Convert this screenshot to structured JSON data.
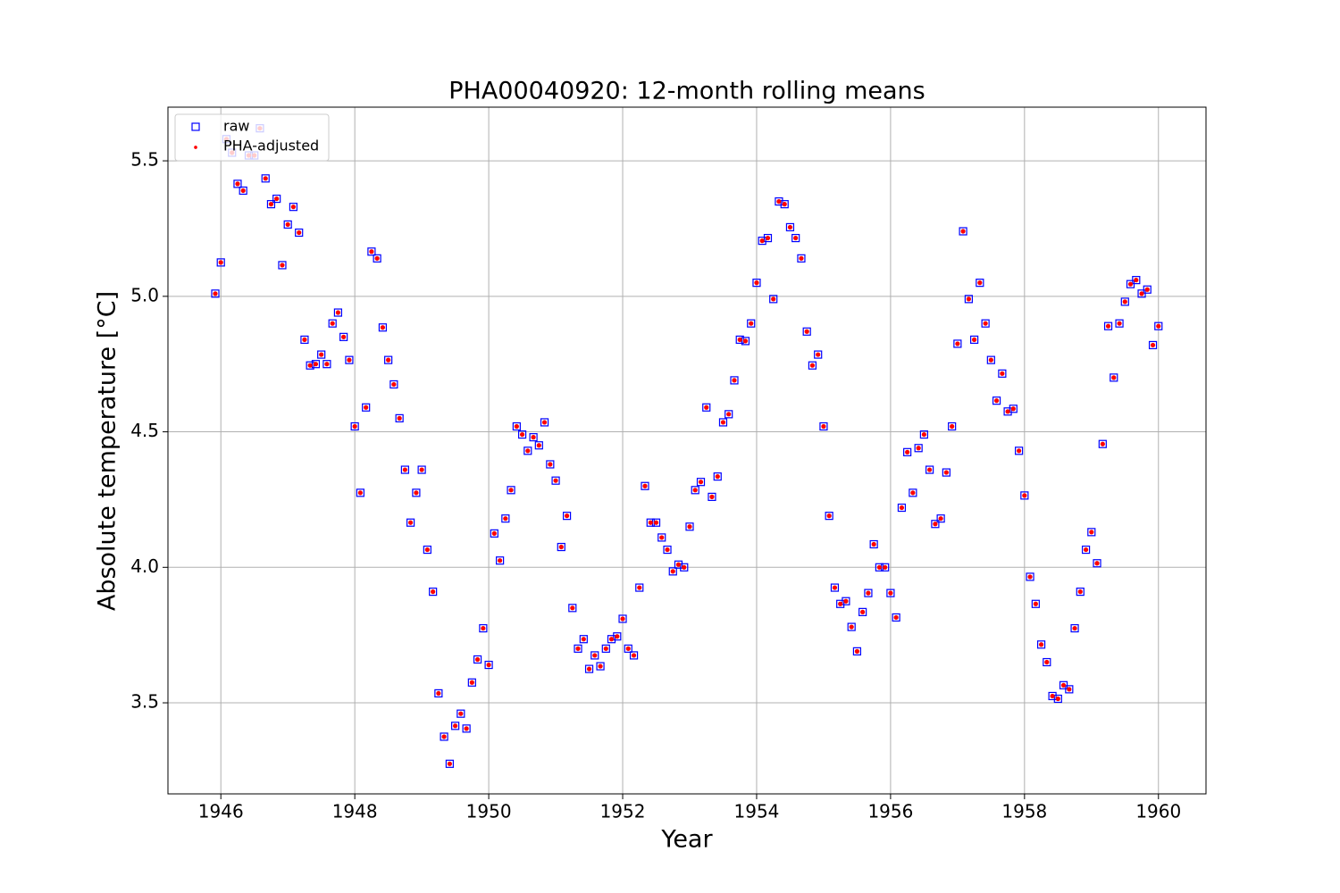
{
  "chart_data": {
    "type": "scatter",
    "title": "PHA00040920: 12-month rolling means",
    "x_label": "Year",
    "y_label": "Absolute temperature [°C]",
    "xlim": [
      1945.21,
      1960.71
    ],
    "ylim": [
      3.164,
      5.698
    ],
    "xticks": [
      1946,
      1948,
      1950,
      1952,
      1954,
      1956,
      1958,
      1960
    ],
    "yticks": [
      3.5,
      {
        "value": 4.0,
        "label": "4.0"
      },
      4.5,
      {
        "value": 5.0,
        "label": "5.0"
      },
      5.5
    ],
    "grid": true,
    "legend": "upper left",
    "x": [
      1945.917,
      1946.0,
      1946.083,
      1946.167,
      1946.25,
      1946.333,
      1946.417,
      1946.5,
      1946.583,
      1946.667,
      1946.75,
      1946.833,
      1946.917,
      1947.0,
      1947.083,
      1947.167,
      1947.25,
      1947.333,
      1947.417,
      1947.5,
      1947.583,
      1947.667,
      1947.75,
      1947.833,
      1947.917,
      1948.0,
      1948.083,
      1948.167,
      1948.25,
      1948.333,
      1948.417,
      1948.5,
      1948.583,
      1948.667,
      1948.75,
      1948.833,
      1948.917,
      1949.0,
      1949.083,
      1949.167,
      1949.25,
      1949.333,
      1949.417,
      1949.5,
      1949.583,
      1949.667,
      1949.75,
      1949.833,
      1949.917,
      1950.0,
      1950.083,
      1950.167,
      1950.25,
      1950.333,
      1950.417,
      1950.5,
      1950.583,
      1950.667,
      1950.75,
      1950.833,
      1950.917,
      1951.0,
      1951.083,
      1951.167,
      1951.25,
      1951.333,
      1951.417,
      1951.5,
      1951.583,
      1951.667,
      1951.75,
      1951.833,
      1951.917,
      1952.0,
      1952.083,
      1952.167,
      1952.25,
      1952.333,
      1952.417,
      1952.5,
      1952.583,
      1952.667,
      1952.75,
      1952.833,
      1952.917,
      1953.0,
      1953.083,
      1953.167,
      1953.25,
      1953.333,
      1953.417,
      1953.5,
      1953.583,
      1953.667,
      1953.75,
      1953.833,
      1953.917,
      1954.0,
      1954.083,
      1954.167,
      1954.25,
      1954.333,
      1954.417,
      1954.5,
      1954.583,
      1954.667,
      1954.75,
      1954.833,
      1954.917,
      1955.0,
      1955.083,
      1955.167,
      1955.25,
      1955.333,
      1955.417,
      1955.5,
      1955.583,
      1955.667,
      1955.75,
      1955.833,
      1955.917,
      1956.0,
      1956.083,
      1956.167,
      1956.25,
      1956.333,
      1956.417,
      1956.5,
      1956.583,
      1956.667,
      1956.75,
      1956.833,
      1956.917,
      1957.0,
      1957.083,
      1957.167,
      1957.25,
      1957.333,
      1957.417,
      1957.5,
      1957.583,
      1957.667,
      1957.75,
      1957.833,
      1957.917,
      1958.0,
      1958.083,
      1958.167,
      1958.25,
      1958.333,
      1958.417,
      1958.5,
      1958.583,
      1958.667,
      1958.75,
      1958.833,
      1958.917,
      1959.0,
      1959.083,
      1959.167,
      1959.25,
      1959.333,
      1959.417,
      1959.5,
      1959.583,
      1959.667,
      1959.75,
      1959.833,
      1959.917,
      1960.0
    ],
    "series": [
      {
        "name": "raw",
        "color": "#0000ff",
        "marker": "square-open",
        "values": [
          5.01,
          5.125,
          5.58,
          5.53,
          5.415,
          5.39,
          5.52,
          5.52,
          5.62,
          5.435,
          5.34,
          5.36,
          5.115,
          5.265,
          5.33,
          5.235,
          4.84,
          4.745,
          4.75,
          4.785,
          4.75,
          4.9,
          4.94,
          4.85,
          4.765,
          4.52,
          4.275,
          4.59,
          5.165,
          5.14,
          4.885,
          4.765,
          4.675,
          4.55,
          4.36,
          4.165,
          4.275,
          4.36,
          4.065,
          3.91,
          3.535,
          3.375,
          3.275,
          3.415,
          3.46,
          3.405,
          3.575,
          3.66,
          3.775,
          3.64,
          4.125,
          4.025,
          4.18,
          4.285,
          4.52,
          4.49,
          4.43,
          4.48,
          4.45,
          4.535,
          4.38,
          4.32,
          4.075,
          4.19,
          3.85,
          3.7,
          3.735,
          3.625,
          3.675,
          3.635,
          3.7,
          3.735,
          3.745,
          3.81,
          3.7,
          3.675,
          3.925,
          4.3,
          4.165,
          4.165,
          4.11,
          4.065,
          3.985,
          4.01,
          4.0,
          4.15,
          4.285,
          4.315,
          4.59,
          4.26,
          4.335,
          4.535,
          4.565,
          4.69,
          4.84,
          4.835,
          4.9,
          5.05,
          5.205,
          5.215,
          4.99,
          5.35,
          5.34,
          5.255,
          5.215,
          5.14,
          4.87,
          4.745,
          4.785,
          4.52,
          4.19,
          3.925,
          3.865,
          3.875,
          3.78,
          3.69,
          3.835,
          3.905,
          4.085,
          4.0,
          4.0,
          3.905,
          3.815,
          4.22,
          4.425,
          4.275,
          4.44,
          4.49,
          4.36,
          4.16,
          4.18,
          4.35,
          4.52,
          4.825,
          5.24,
          4.99,
          4.84,
          5.05,
          4.9,
          4.765,
          4.615,
          4.715,
          4.575,
          4.585,
          4.43,
          4.265,
          3.965,
          3.865,
          3.715,
          3.65,
          3.525,
          3.515,
          3.565,
          3.55,
          3.775,
          3.91,
          4.065,
          4.13,
          4.015,
          4.455,
          4.89,
          4.7,
          4.9,
          4.98,
          5.045,
          5.06,
          5.01,
          5.025,
          4.82,
          4.89
        ]
      },
      {
        "name": "PHA-adjusted",
        "color": "#ff0000",
        "marker": "dot",
        "values": [
          5.01,
          5.125,
          5.58,
          5.53,
          5.415,
          5.39,
          5.52,
          5.52,
          5.62,
          5.435,
          5.34,
          5.36,
          5.115,
          5.265,
          5.33,
          5.235,
          4.84,
          4.745,
          4.75,
          4.785,
          4.75,
          4.9,
          4.94,
          4.85,
          4.765,
          4.52,
          4.275,
          4.59,
          5.165,
          5.14,
          4.885,
          4.765,
          4.675,
          4.55,
          4.36,
          4.165,
          4.275,
          4.36,
          4.065,
          3.91,
          3.535,
          3.375,
          3.275,
          3.415,
          3.46,
          3.405,
          3.575,
          3.66,
          3.775,
          3.64,
          4.125,
          4.025,
          4.18,
          4.285,
          4.52,
          4.49,
          4.43,
          4.48,
          4.45,
          4.535,
          4.38,
          4.32,
          4.075,
          4.19,
          3.85,
          3.7,
          3.735,
          3.625,
          3.675,
          3.635,
          3.7,
          3.735,
          3.745,
          3.81,
          3.7,
          3.675,
          3.925,
          4.3,
          4.165,
          4.165,
          4.11,
          4.065,
          3.985,
          4.01,
          4.0,
          4.15,
          4.285,
          4.315,
          4.59,
          4.26,
          4.335,
          4.535,
          4.565,
          4.69,
          4.84,
          4.835,
          4.9,
          5.05,
          5.205,
          5.215,
          4.99,
          5.35,
          5.34,
          5.255,
          5.215,
          5.14,
          4.87,
          4.745,
          4.785,
          4.52,
          4.19,
          3.925,
          3.865,
          3.875,
          3.78,
          3.69,
          3.835,
          3.905,
          4.085,
          4.0,
          4.0,
          3.905,
          3.815,
          4.22,
          4.425,
          4.275,
          4.44,
          4.49,
          4.36,
          4.16,
          4.18,
          4.35,
          4.52,
          4.825,
          5.24,
          4.99,
          4.84,
          5.05,
          4.9,
          4.765,
          4.615,
          4.715,
          4.575,
          4.585,
          4.43,
          4.265,
          3.965,
          3.865,
          3.715,
          3.65,
          3.525,
          3.515,
          3.565,
          3.55,
          3.775,
          3.91,
          4.065,
          4.13,
          4.015,
          4.455,
          4.89,
          4.7,
          4.9,
          4.98,
          5.045,
          5.06,
          5.01,
          5.025,
          4.82,
          4.89
        ]
      }
    ]
  }
}
